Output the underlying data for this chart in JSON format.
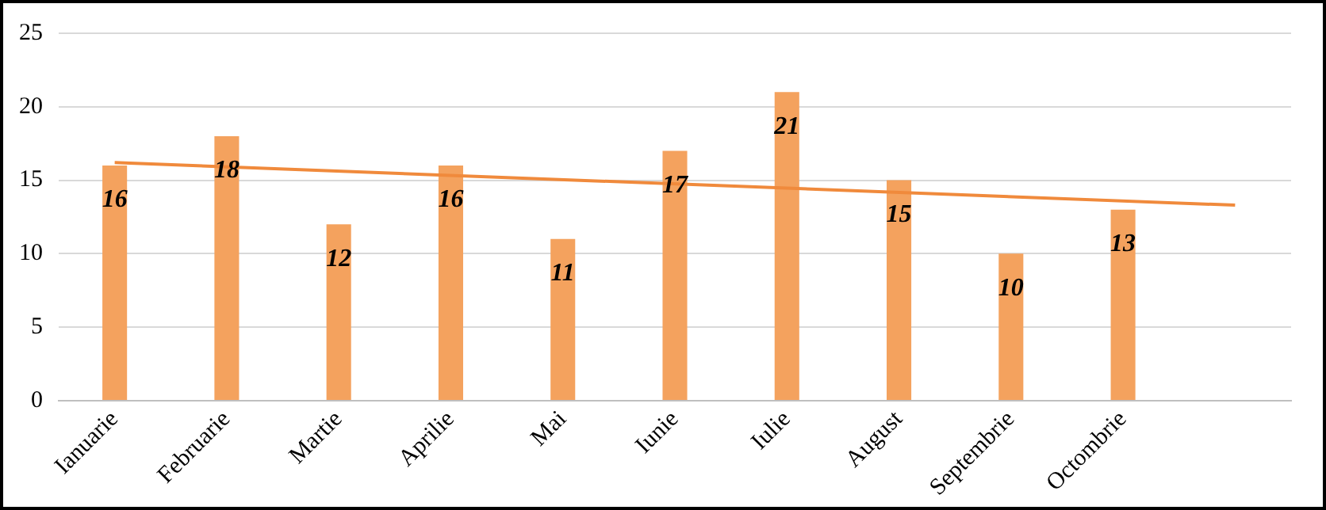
{
  "chart_data": {
    "type": "bar",
    "categories": [
      "Ianuarie",
      "Februarie",
      "Martie",
      "Aprilie",
      "Mai",
      "Iunie",
      "Iulie",
      "August",
      "Septembrie",
      "Octombrie",
      null
    ],
    "series": [
      {
        "color": "#f4a25e",
        "values": [
          16,
          18,
          12,
          16,
          11,
          17,
          21,
          15,
          10,
          13,
          null
        ],
        "value_labels": [
          "16",
          "18",
          "12",
          "16",
          "11",
          "17",
          "21",
          "15",
          "10",
          "13",
          null
        ]
      },
      {
        "type": "line",
        "color": "#f08a3c",
        "values": [
          16.2,
          null,
          null,
          null,
          null,
          null,
          null,
          null,
          null,
          null,
          13.3
        ]
      }
    ],
    "ylim": [
      0,
      25
    ],
    "yticks": [
      0,
      5,
      10,
      15,
      20,
      25
    ],
    "grid": "y",
    "legend": false,
    "marker": "none",
    "line_style": "solid"
  }
}
